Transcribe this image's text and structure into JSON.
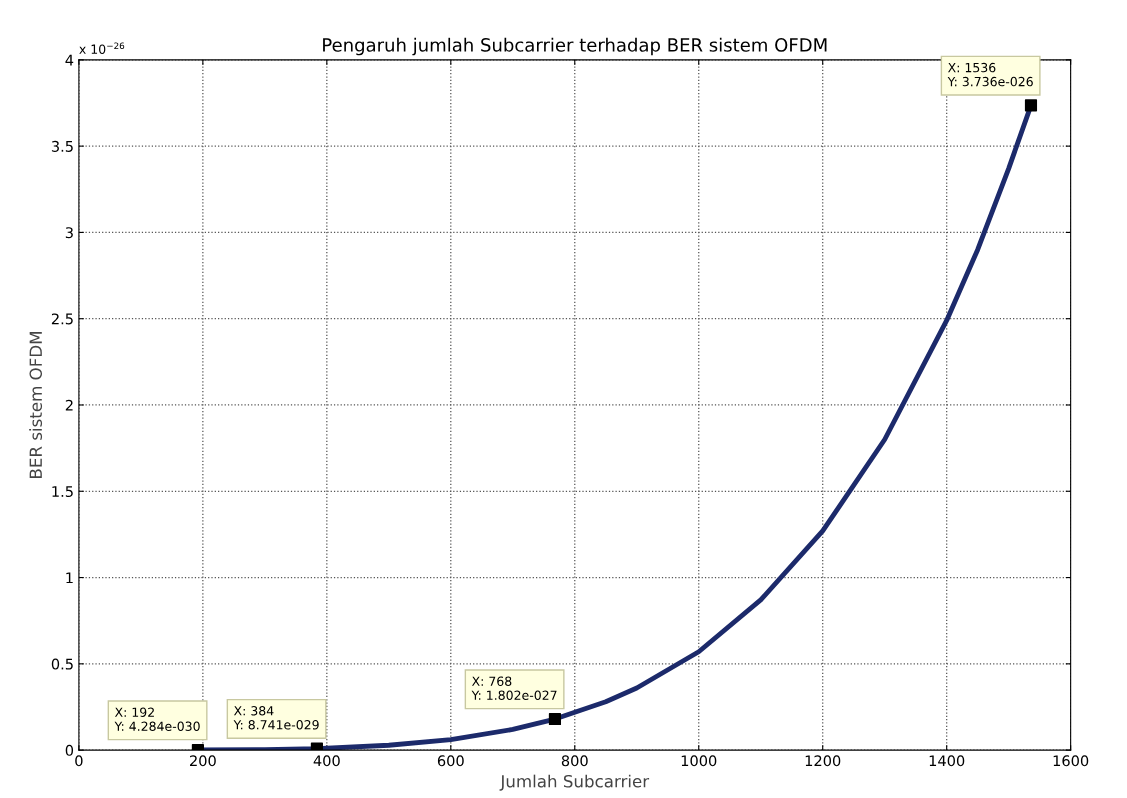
{
  "chart_data": {
    "type": "line",
    "title": "Pengaruh jumlah Subcarrier terhadap BER sistem OFDM",
    "xlabel": "Jumlah Subcarrier",
    "ylabel": "BER sistem OFDM",
    "series": [
      {
        "color": "#1c2a6b",
        "marker": "none",
        "x": [
          192,
          300,
          384,
          500,
          600,
          700,
          768,
          850,
          900,
          1000,
          1100,
          1200,
          1300,
          1400,
          1450,
          1500,
          1536
        ],
        "values": [
          0.0004284,
          0.003,
          0.008741,
          0.028,
          0.061,
          0.12,
          0.1802,
          0.28,
          0.36,
          0.57,
          0.87,
          1.27,
          1.8,
          2.49,
          2.9,
          3.37,
          3.736
        ]
      },
      {
        "type": "scatter",
        "color": "#000000",
        "marker": "square",
        "x": [
          192,
          384,
          768,
          1536
        ],
        "values": [
          0.0004284,
          0.008741,
          0.1802,
          3.736
        ]
      }
    ],
    "annotations": [
      "x 10$^{−26}$",
      {
        "text": "X: 192\nY: 4.284e-030",
        "x": 192,
        "y": 0.0004284
      },
      {
        "text": "X: 384\nY: 8.741e-029",
        "x": 384,
        "y": 0.008741
      },
      {
        "text": "X: 768\nY: 1.802e-027",
        "x": 768,
        "y": 0.1802
      },
      {
        "text": "X: 1536\nY: 3.736e-026",
        "x": 1536,
        "y": 3.736
      }
    ],
    "xlim": [
      0,
      1600
    ],
    "xticks": [
      0,
      200,
      400,
      600,
      800,
      1000,
      1200,
      1400,
      1600
    ],
    "ylim": [
      0,
      4
    ],
    "yticks": [
      0,
      0.5,
      1,
      1.5,
      2,
      2.5,
      3,
      3.5,
      4
    ],
    "grid": true,
    "line_style": "solid",
    "legend": false
  }
}
